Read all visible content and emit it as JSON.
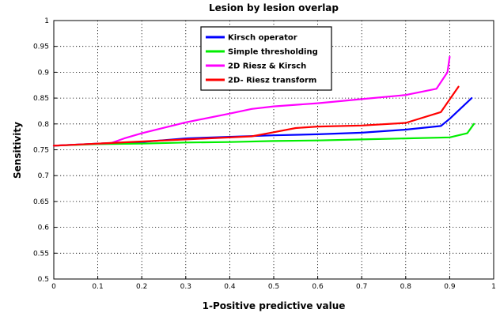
{
  "chart_data": {
    "type": "line",
    "title": "Lesion by lesion overlap",
    "xlabel": "1-Positive predictive value",
    "ylabel": "Sensitivity",
    "xlim": [
      0,
      1
    ],
    "ylim": [
      0.5,
      1
    ],
    "x_ticks": [
      "0",
      "0.1",
      "0.2",
      "0.3",
      "0.4",
      "0.5",
      "0.6",
      "0.7",
      "0.8",
      "0.9",
      "1"
    ],
    "y_ticks": [
      "0.5",
      "0.55",
      "0.6",
      "0.65",
      "0.7",
      "0.75",
      "0.8",
      "0.85",
      "0.9",
      "0.95",
      "1"
    ],
    "grid": true,
    "legend_position": "top-center",
    "series": [
      {
        "name": "Kirsch operator",
        "color": "#0000ff",
        "points": [
          [
            0,
            0.758
          ],
          [
            0.1,
            0.762
          ],
          [
            0.2,
            0.765
          ],
          [
            0.3,
            0.772
          ],
          [
            0.4,
            0.775
          ],
          [
            0.5,
            0.778
          ],
          [
            0.6,
            0.78
          ],
          [
            0.7,
            0.783
          ],
          [
            0.8,
            0.789
          ],
          [
            0.88,
            0.796
          ],
          [
            0.9,
            0.81
          ],
          [
            0.95,
            0.85
          ]
        ]
      },
      {
        "name": "Simple thresholding",
        "color": "#00ee00",
        "points": [
          [
            0,
            0.758
          ],
          [
            0.1,
            0.761
          ],
          [
            0.2,
            0.762
          ],
          [
            0.3,
            0.764
          ],
          [
            0.4,
            0.765
          ],
          [
            0.5,
            0.767
          ],
          [
            0.6,
            0.768
          ],
          [
            0.7,
            0.77
          ],
          [
            0.8,
            0.772
          ],
          [
            0.9,
            0.774
          ],
          [
            0.94,
            0.782
          ],
          [
            0.955,
            0.8
          ]
        ]
      },
      {
        "name": "2D Riesz & Kirsch",
        "color": "#ff00ff",
        "points": [
          [
            0,
            0.758
          ],
          [
            0.13,
            0.763
          ],
          [
            0.16,
            0.772
          ],
          [
            0.2,
            0.782
          ],
          [
            0.3,
            0.803
          ],
          [
            0.4,
            0.82
          ],
          [
            0.45,
            0.829
          ],
          [
            0.5,
            0.834
          ],
          [
            0.6,
            0.84
          ],
          [
            0.7,
            0.848
          ],
          [
            0.8,
            0.856
          ],
          [
            0.87,
            0.868
          ],
          [
            0.895,
            0.9
          ],
          [
            0.9,
            0.93
          ]
        ]
      },
      {
        "name": "2D- Riesz transform",
        "color": "#ff0000",
        "points": [
          [
            0,
            0.758
          ],
          [
            0.1,
            0.762
          ],
          [
            0.2,
            0.766
          ],
          [
            0.3,
            0.77
          ],
          [
            0.45,
            0.776
          ],
          [
            0.5,
            0.784
          ],
          [
            0.55,
            0.792
          ],
          [
            0.6,
            0.795
          ],
          [
            0.7,
            0.797
          ],
          [
            0.8,
            0.802
          ],
          [
            0.88,
            0.823
          ],
          [
            0.92,
            0.872
          ]
        ]
      }
    ]
  }
}
